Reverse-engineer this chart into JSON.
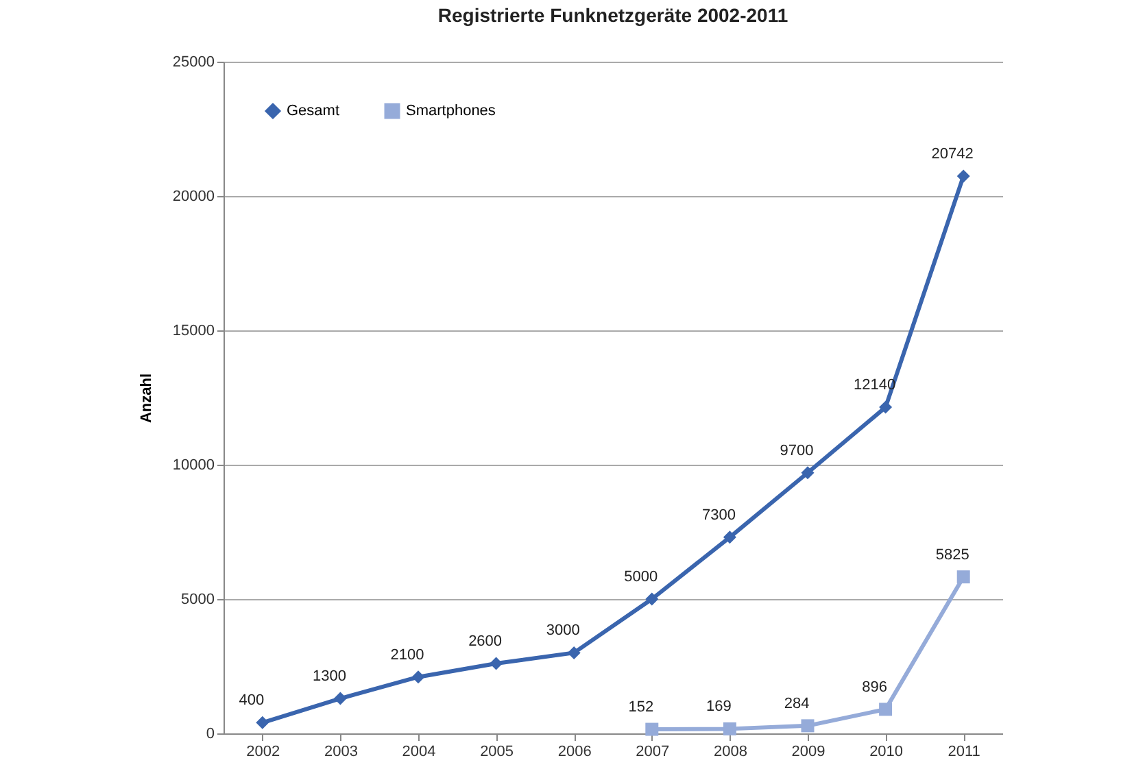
{
  "chart_data": {
    "type": "line",
    "title": "Registrierte Funknetzgeräte 2002-2011",
    "ylabel": "Anzahl",
    "categories": [
      "2002",
      "2003",
      "2004",
      "2005",
      "2006",
      "2007",
      "2008",
      "2009",
      "2010",
      "2011"
    ],
    "series": [
      {
        "name": "Gesamt",
        "color": "#3a65ae",
        "marker": "diamond",
        "values": [
          400,
          1300,
          2100,
          2600,
          3000,
          5000,
          7300,
          9700,
          12140,
          20742
        ]
      },
      {
        "name": "Smartphones",
        "color": "#95abd9",
        "marker": "square",
        "values": [
          null,
          null,
          null,
          null,
          null,
          152,
          169,
          284,
          896,
          5825
        ]
      }
    ],
    "ylim": [
      0,
      25000
    ],
    "yticks": [
      0,
      5000,
      10000,
      15000,
      20000,
      25000
    ],
    "grid": "y",
    "legend": "top left",
    "data_labels": true,
    "line_style": "solid"
  }
}
